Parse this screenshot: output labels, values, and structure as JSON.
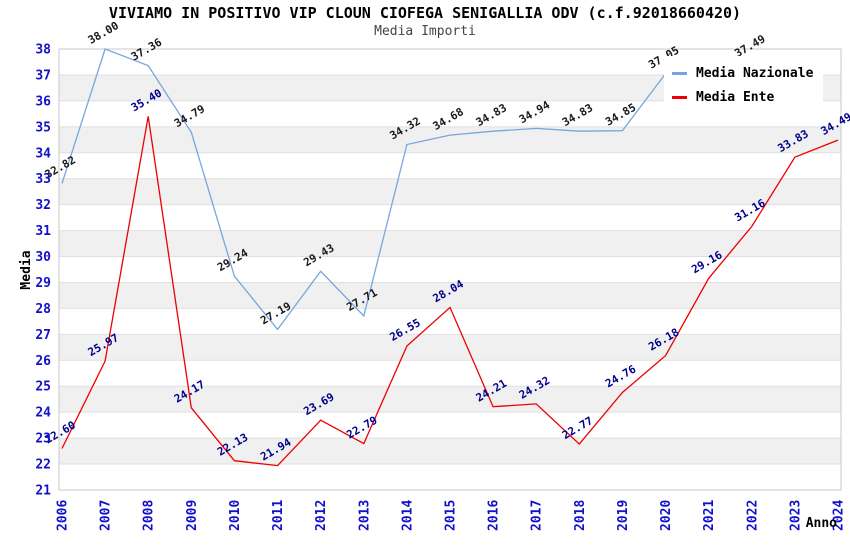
{
  "header": {
    "title": "VIVIAMO IN POSITIVO VIP CLOUN CIOFEGA SENIGALLIA ODV (c.f.92018660420)",
    "subtitle": "Media Importi"
  },
  "legend": {
    "items": [
      {
        "label": "Media Nazionale",
        "color": "#76A7DC"
      },
      {
        "label": "Media Ente",
        "color": "#EE0000"
      }
    ]
  },
  "chart_data": {
    "type": "line",
    "x": [
      2006,
      2007,
      2008,
      2009,
      2010,
      2011,
      2012,
      2013,
      2014,
      2015,
      2016,
      2017,
      2018,
      2019,
      2020,
      2021,
      2022,
      2023,
      2024
    ],
    "xlabel": "Anno",
    "ylabel": "Media",
    "ylim": [
      21,
      38
    ],
    "ytick_step": 1,
    "grid": "alternating-horizontal-bands",
    "legend_position": "top-right-inside",
    "series": [
      {
        "name": "Media Nazionale",
        "color": "#76A7DC",
        "label_color": "#1A1A1A",
        "values": [
          32.82,
          38.0,
          37.36,
          34.79,
          29.24,
          27.19,
          29.43,
          27.71,
          34.32,
          34.68,
          34.83,
          34.94,
          34.83,
          34.85,
          37.05,
          null,
          37.49,
          null,
          null
        ]
      },
      {
        "name": "Media Ente",
        "color": "#EE0000",
        "label_color": "#00008C",
        "values": [
          22.6,
          25.97,
          35.4,
          24.17,
          22.13,
          21.94,
          23.69,
          22.79,
          26.55,
          28.04,
          24.21,
          24.32,
          22.77,
          24.76,
          26.18,
          29.16,
          31.16,
          33.83,
          34.49
        ]
      }
    ],
    "style": {
      "band_fill": "#F0F0F0",
      "gridline_color": "#E0E0E0",
      "plot_border_color": "#C8C8C8",
      "tick_label_color": "#1111CC",
      "axis_title_color": "#000000"
    }
  }
}
